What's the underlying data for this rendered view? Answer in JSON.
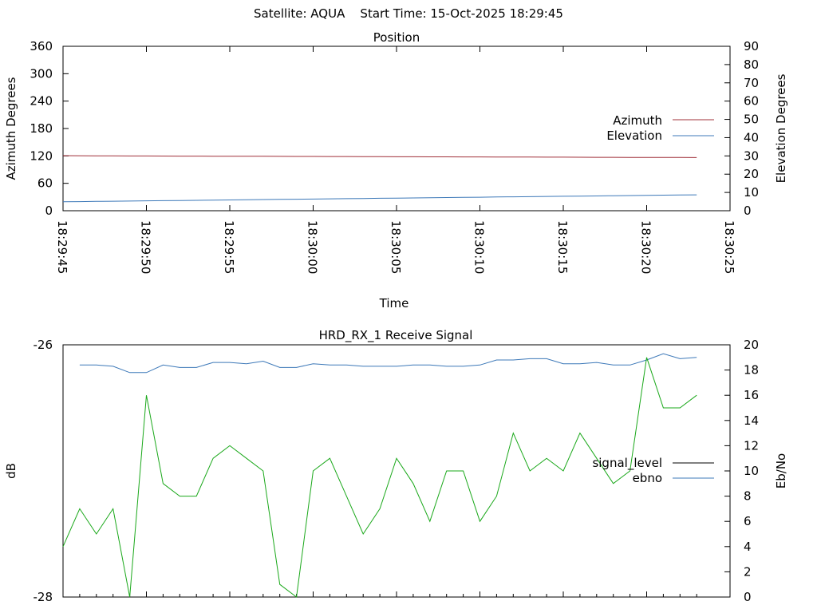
{
  "header": {
    "satellite": "Satellite: AQUA",
    "start_time": "Start Time: 15-Oct-2025 18:29:45"
  },
  "colors": {
    "azimuth": "#a0303a",
    "elevation": "#3c78b8",
    "signal_level": "#000000",
    "ebno_line": "#3c78b8",
    "signal_series": "#1aa81a",
    "background": "#ffffff"
  },
  "chart_data": [
    {
      "type": "line",
      "title": "Position",
      "xlabel": "Time",
      "ylabel": "Azimuth Degrees",
      "y2label": "Elevation Degrees",
      "ylim": [
        0,
        360
      ],
      "y2lim": [
        0,
        90
      ],
      "xlim": [
        "18:29:45",
        "18:30:25"
      ],
      "x_tick_labels": [
        "18:29:45",
        "18:29:50",
        "18:29:55",
        "18:30:00",
        "18:30:05",
        "18:30:10",
        "18:30:15",
        "18:30:20",
        "18:30:25"
      ],
      "y_tick_labels": [
        "0",
        "60",
        "120",
        "180",
        "240",
        "300",
        "360"
      ],
      "y2_tick_labels": [
        "0",
        "10",
        "20",
        "30",
        "40",
        "50",
        "60",
        "70",
        "80",
        "90"
      ],
      "legend_position": "right",
      "x": [
        "18:29:45",
        "18:29:46",
        "18:29:47",
        "18:29:48",
        "18:29:49",
        "18:29:50",
        "18:29:51",
        "18:29:52",
        "18:29:53",
        "18:29:54",
        "18:29:55",
        "18:29:56",
        "18:29:57",
        "18:29:58",
        "18:29:59",
        "18:30:00",
        "18:30:01",
        "18:30:02",
        "18:30:03",
        "18:30:04",
        "18:30:05",
        "18:30:06",
        "18:30:07",
        "18:30:08",
        "18:30:09",
        "18:30:10",
        "18:30:11",
        "18:30:12",
        "18:30:13",
        "18:30:14",
        "18:30:15",
        "18:30:16",
        "18:30:17",
        "18:30:18",
        "18:30:19",
        "18:30:20",
        "18:30:21",
        "18:30:22",
        "18:30:23"
      ],
      "series": [
        {
          "name": "Azimuth",
          "axis": "left",
          "values": [
            120.5,
            120.4,
            120.3,
            120.1,
            119.9,
            119.8,
            119.7,
            119.6,
            119.5,
            119.4,
            119.3,
            119.2,
            119.1,
            119.0,
            118.9,
            118.8,
            118.7,
            118.6,
            118.5,
            118.4,
            118.2,
            118.1,
            118.0,
            117.9,
            117.8,
            117.7,
            117.6,
            117.5,
            117.4,
            117.3,
            117.2,
            117.1,
            117.0,
            116.9,
            116.8,
            116.7,
            116.6,
            116.5,
            116.4
          ]
        },
        {
          "name": "Elevation",
          "axis": "right",
          "values": [
            4.9,
            5.0,
            5.1,
            5.2,
            5.3,
            5.4,
            5.5,
            5.6,
            5.7,
            5.8,
            5.9,
            6.0,
            6.1,
            6.2,
            6.3,
            6.4,
            6.5,
            6.6,
            6.7,
            6.8,
            6.9,
            7.0,
            7.1,
            7.2,
            7.3,
            7.4,
            7.5,
            7.6,
            7.7,
            7.8,
            7.9,
            8.0,
            8.1,
            8.2,
            8.3,
            8.4,
            8.5,
            8.6,
            8.7
          ]
        }
      ]
    },
    {
      "type": "line",
      "title": "HRD_RX_1 Receive Signal",
      "xlabel": "",
      "ylabel": "dB",
      "y2label": "Eb/No",
      "ylim": [
        -28,
        -26
      ],
      "y2lim": [
        0,
        20
      ],
      "xlim": [
        "18:29:45",
        "18:30:25"
      ],
      "y_tick_labels": [
        "-28",
        "-26"
      ],
      "y2_tick_labels": [
        "0",
        "2",
        "4",
        "6",
        "8",
        "10",
        "12",
        "14",
        "16",
        "18",
        "20"
      ],
      "legend_position": "right",
      "legend": [
        "signal_level",
        "ebno"
      ],
      "x": [
        "18:29:45",
        "18:29:46",
        "18:29:47",
        "18:29:48",
        "18:29:49",
        "18:29:50",
        "18:29:51",
        "18:29:52",
        "18:29:53",
        "18:29:54",
        "18:29:55",
        "18:29:56",
        "18:29:57",
        "18:29:58",
        "18:29:59",
        "18:30:00",
        "18:30:01",
        "18:30:02",
        "18:30:03",
        "18:30:04",
        "18:30:05",
        "18:30:06",
        "18:30:07",
        "18:30:08",
        "18:30:09",
        "18:30:10",
        "18:30:11",
        "18:30:12",
        "18:30:13",
        "18:30:14",
        "18:30:15",
        "18:30:16",
        "18:30:17",
        "18:30:18",
        "18:30:19",
        "18:30:20",
        "18:30:21",
        "18:30:22",
        "18:30:23"
      ],
      "series": [
        {
          "name": "ebno",
          "axis": "right",
          "values": [
            null,
            18.4,
            18.4,
            18.3,
            17.8,
            17.8,
            18.4,
            18.2,
            18.2,
            18.6,
            18.6,
            18.5,
            18.7,
            18.2,
            18.2,
            18.5,
            18.4,
            18.4,
            18.3,
            18.3,
            18.3,
            18.4,
            18.4,
            18.3,
            18.3,
            18.4,
            18.8,
            18.8,
            18.9,
            18.9,
            18.5,
            18.5,
            18.6,
            18.4,
            18.4,
            18.8,
            19.3,
            18.9,
            19.0
          ]
        },
        {
          "name": "",
          "axis": "right",
          "values": [
            4.0,
            7.0,
            5.0,
            7.0,
            0.0,
            16.0,
            9.0,
            8.0,
            8.0,
            11.0,
            12.0,
            11.0,
            10.0,
            1.0,
            0.0,
            10.0,
            11.0,
            8.0,
            5.0,
            7.0,
            11.0,
            9.0,
            6.0,
            10.0,
            10.0,
            6.0,
            8.0,
            13.0,
            10.0,
            11.0,
            10.0,
            13.0,
            11.0,
            9.0,
            10.0,
            19.0,
            15.0,
            15.0,
            16.0
          ]
        }
      ]
    }
  ]
}
